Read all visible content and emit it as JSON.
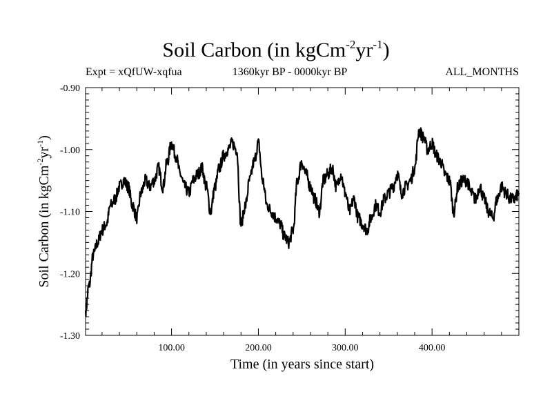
{
  "header": {
    "title_main": "Soil Carbon (in kgCm",
    "title_sup1": "-2",
    "title_mid": "yr",
    "title_sup2": "-1",
    "title_end": ")",
    "expt": "Expt = xQfUW-xqfua",
    "period": "1360kyr BP - 0000kyr BP",
    "months": "ALL_MONTHS"
  },
  "chart_data": {
    "type": "line",
    "title": "Soil Carbon (in kgCm-2yr-1)",
    "xlabel": "Time (in years since start)",
    "ylabel": "Soil Carbon (in kgCm-2yr-1)",
    "ylabel_parts": {
      "a": "Soil Carbon (in kgCm",
      "s1": "-2",
      "b": "yr",
      "s2": "-1",
      "c": ")"
    },
    "xlim": [
      1,
      500
    ],
    "ylim": [
      -1.3,
      -0.9
    ],
    "xticks": [
      100,
      200,
      300,
      400
    ],
    "xtick_labels": [
      "100.00",
      "200.00",
      "300.00",
      "400.00"
    ],
    "yticks": [
      -1.3,
      -1.2,
      -1.1,
      -1.0,
      -0.9
    ],
    "ytick_labels": [
      "-1.30",
      "-1.20",
      "-1.10",
      "-1.00",
      "-0.90"
    ],
    "series": [
      {
        "name": "Soil Carbon",
        "color": "#000000",
        "x": [
          1,
          5,
          10,
          15,
          20,
          25,
          30,
          35,
          40,
          45,
          50,
          55,
          60,
          65,
          70,
          75,
          80,
          85,
          90,
          95,
          100,
          105,
          110,
          115,
          120,
          125,
          130,
          135,
          140,
          145,
          150,
          155,
          160,
          165,
          170,
          175,
          180,
          185,
          190,
          195,
          200,
          205,
          210,
          215,
          220,
          225,
          230,
          235,
          240,
          245,
          250,
          255,
          260,
          265,
          270,
          275,
          280,
          285,
          290,
          295,
          300,
          305,
          310,
          315,
          320,
          325,
          330,
          335,
          340,
          345,
          350,
          355,
          360,
          365,
          370,
          375,
          380,
          385,
          390,
          395,
          400,
          405,
          410,
          415,
          420,
          425,
          430,
          435,
          440,
          445,
          450,
          455,
          460,
          465,
          470,
          475,
          480,
          485,
          490,
          495,
          500
        ],
        "y": [
          -1.26,
          -1.22,
          -1.17,
          -1.15,
          -1.13,
          -1.12,
          -1.09,
          -1.08,
          -1.06,
          -1.05,
          -1.06,
          -1.09,
          -1.11,
          -1.07,
          -1.05,
          -1.06,
          -1.05,
          -1.03,
          -1.06,
          -1.02,
          -0.99,
          -1.01,
          -1.04,
          -1.06,
          -1.07,
          -1.05,
          -1.04,
          -1.03,
          -1.06,
          -1.1,
          -1.06,
          -1.03,
          -1.01,
          -1.0,
          -0.99,
          -1.0,
          -1.12,
          -1.09,
          -1.05,
          -1.02,
          -0.99,
          -1.05,
          -1.09,
          -1.1,
          -1.11,
          -1.12,
          -1.14,
          -1.15,
          -1.13,
          -1.05,
          -1.02,
          -1.04,
          -1.06,
          -1.08,
          -1.1,
          -1.05,
          -1.04,
          -1.03,
          -1.06,
          -1.04,
          -1.07,
          -1.1,
          -1.08,
          -1.11,
          -1.12,
          -1.13,
          -1.11,
          -1.09,
          -1.1,
          -1.08,
          -1.07,
          -1.06,
          -1.04,
          -1.07,
          -1.06,
          -1.05,
          -1.03,
          -0.97,
          -0.98,
          -1.0,
          -0.99,
          -1.01,
          -1.02,
          -1.04,
          -1.05,
          -1.1,
          -1.06,
          -1.05,
          -1.05,
          -1.07,
          -1.08,
          -1.06,
          -1.08,
          -1.1,
          -1.11,
          -1.08,
          -1.06,
          -1.07,
          -1.08,
          -1.08,
          -1.07
        ]
      }
    ]
  }
}
